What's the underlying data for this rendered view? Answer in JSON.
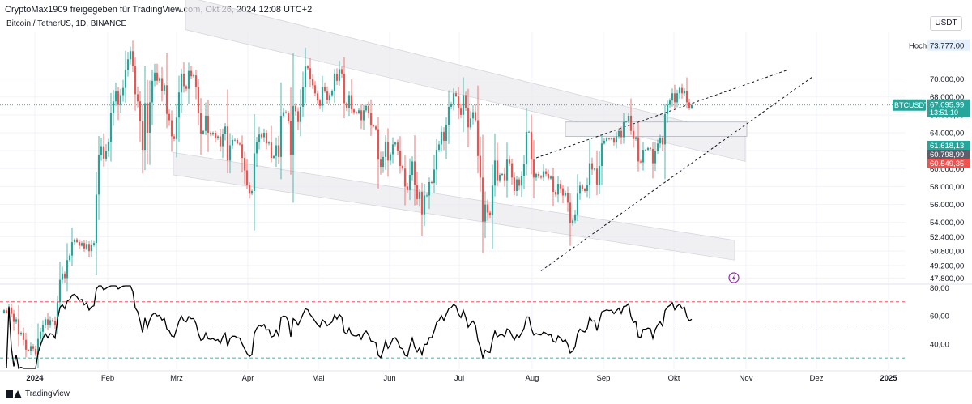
{
  "header": {
    "shared_by": "CryptoMax1909 freigegeben für TradingView.com, Okt 26, 2024 12:08 UTC+2",
    "symbol_line": "Bitcoin / TetherUS, 1D, BINANCE",
    "currency": "USDT"
  },
  "footer": {
    "brand": "TradingView"
  },
  "colors": {
    "up": "#26a69a",
    "down": "#ef5350",
    "grid": "#f0f3fa",
    "axis_text": "#131722",
    "price_line": "#089981",
    "rsi": "#000000",
    "rsi_upper": "#f23645",
    "rsi_mid": "#787b86",
    "rsi_lower": "#089981",
    "channel_fill": "#e9e9ee",
    "power_icon": "#9c27b0"
  },
  "icons": {
    "power": "lightning-icon"
  },
  "chart_data": [
    {
      "type": "candlestick",
      "title": "Bitcoin / TetherUS, 1D, BINANCE",
      "x_axis_labels": [
        "2024",
        "Feb",
        "Mrz",
        "Apr",
        "Mai",
        "Jun",
        "Jul",
        "Aug",
        "Sep",
        "Okt",
        "Nov",
        "Dez",
        "2025"
      ],
      "y_ticks": [
        "70.000,00",
        "68.000,00",
        "66.000,00",
        "64.000,00",
        "62.000,00",
        "60.000,00",
        "58.000,00",
        "56.000,00",
        "54.000,00",
        "52.400,00",
        "50.800,00",
        "49.200,00",
        "47.800,00"
      ],
      "y_tick_values": [
        70000,
        68000,
        66000,
        64000,
        62000,
        60000,
        58000,
        56000,
        54000,
        52400,
        50800,
        49200,
        47800
      ],
      "ylim": [
        47200,
        75200
      ],
      "high_label": "Hoch",
      "high_value": "73.777,00",
      "price_tags": [
        {
          "label": "BTCUSDT",
          "value": "67.095,99",
          "sub": "13:51:10",
          "price": 67095.99,
          "color": "#26a69a"
        },
        {
          "label": "",
          "value": "61.618,13",
          "price": 61618.13,
          "color": "#26a69a"
        },
        {
          "label": "",
          "value": "60.798,99",
          "price": 60798.99,
          "color": "#5d606b"
        },
        {
          "label": "",
          "value": "60.549,35",
          "price": 60549.35,
          "color": "#ef5350"
        }
      ],
      "closes": [
        44200,
        43900,
        44500,
        43800,
        42900,
        43200,
        41500,
        41700,
        40900,
        39800,
        39700,
        40200,
        39900,
        39300,
        41000,
        41800,
        42600,
        43200,
        42600,
        43100,
        43000,
        42500,
        45100,
        47600,
        48300,
        47800,
        49800,
        50300,
        51800,
        52100,
        51800,
        51400,
        51700,
        51100,
        51600,
        50800,
        51500,
        51700,
        57100,
        61500,
        62500,
        61100,
        62000,
        63000,
        66200,
        67500,
        68600,
        67100,
        68200,
        69000,
        71000,
        72200,
        73100,
        71400,
        68300,
        67500,
        65300,
        62100,
        67300,
        64000,
        67400,
        69800,
        70700,
        69800,
        70100,
        68700,
        69300,
        66100,
        65400,
        63600,
        63300,
        65700,
        68500,
        70600,
        69200,
        68900,
        70900,
        70300,
        70400,
        69100,
        66200,
        63900,
        64200,
        65900,
        64000,
        63800,
        64000,
        63400,
        63600,
        62500,
        63900,
        64700,
        60900,
        62600,
        63200,
        63200,
        62800,
        62700,
        61200,
        59800,
        58200,
        57200,
        57500,
        61700,
        63000,
        63800,
        63500,
        64000,
        62800,
        62900,
        61200,
        61400,
        62600,
        61300,
        65900,
        66300,
        66200,
        65300,
        61500,
        67000,
        66400,
        65200,
        66900,
        69100,
        71400,
        71200,
        70000,
        69300,
        68400,
        67600,
        67000,
        69100,
        68600,
        67700,
        68200,
        68700,
        70600,
        69800,
        71100,
        70600,
        67300,
        66800,
        68200,
        66600,
        66300,
        66200,
        66500,
        65400,
        66500,
        67000,
        66200,
        64800,
        64700,
        64400,
        61000,
        60200,
        61300,
        63000,
        60900,
        61600,
        62700,
        62900,
        62000,
        60300,
        60000,
        58000,
        57600,
        59300,
        60800,
        58200,
        56600,
        57400,
        54900,
        57000,
        57000,
        58500,
        58400,
        59900,
        62100,
        62700,
        64100,
        63100,
        64900,
        66900,
        67200,
        68400,
        68100,
        66700,
        66000,
        68200,
        66800,
        64600,
        65600,
        66300,
        65400,
        61400,
        59000,
        54100,
        56000,
        55100,
        54800,
        58100,
        60900,
        58700,
        59300,
        59400,
        58700,
        61000,
        60600,
        59000,
        57500,
        58800,
        58100,
        59200,
        60500,
        64100,
        64100,
        61000,
        59000,
        59400,
        59100,
        59000,
        59700,
        59400,
        58900,
        59100,
        57400,
        57100,
        58300,
        57800,
        57000,
        57300,
        56200,
        53900,
        54200,
        54900,
        57200,
        58100,
        57700,
        57500,
        58200,
        60600,
        59900,
        60000,
        58200,
        60300,
        62800,
        63100,
        63400,
        63300,
        63400,
        62900,
        63600,
        64200,
        63500,
        65200,
        65300,
        65900,
        64200,
        63300,
        63500,
        60800,
        60700,
        62100,
        62100,
        62300,
        62200,
        60600,
        62000,
        62800,
        63400,
        62700,
        66100,
        67100,
        67600,
        68400,
        67400,
        68400,
        69000,
        68400,
        68700,
        67400,
        66800,
        67100
      ]
    },
    {
      "type": "line",
      "title": "RSI",
      "y_ticks": [
        "80,00",
        "60,00",
        "40,00"
      ],
      "y_tick_values": [
        80,
        60,
        40
      ],
      "ylim": [
        22,
        82
      ],
      "levels": {
        "upper": 70,
        "middle": 50,
        "lower": 30
      }
    }
  ]
}
